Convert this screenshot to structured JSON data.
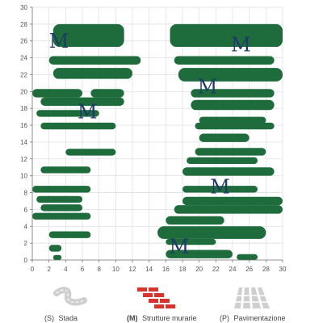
{
  "chart_data": {
    "type": "heatmap",
    "title": "",
    "xlabel": "",
    "ylabel": "",
    "xlim": [
      0,
      30
    ],
    "ylim": [
      0,
      30
    ],
    "xticks": [
      "0",
      "2",
      "4",
      "6",
      "8",
      "10",
      "12",
      "14",
      "16",
      "18",
      "20",
      "22",
      "24",
      "26",
      "28",
      "30"
    ],
    "yticks": [
      "0",
      "2",
      "4",
      "6",
      "8",
      "10",
      "12",
      "14",
      "16",
      "18",
      "20",
      "22",
      "24",
      "26",
      "28",
      "30"
    ],
    "fill_color": "#1e6b3c",
    "regions": [
      {
        "x": [
          2.5,
          11
        ],
        "y": [
          25.3,
          28
        ]
      },
      {
        "x": [
          16.5,
          30
        ],
        "y": [
          25.3,
          28
        ]
      },
      {
        "x": [
          2,
          13
        ],
        "y": [
          23.2,
          24.2
        ]
      },
      {
        "x": [
          17,
          29
        ],
        "y": [
          23.2,
          24.2
        ]
      },
      {
        "x": [
          2.5,
          12
        ],
        "y": [
          21.5,
          22.8
        ]
      },
      {
        "x": [
          17.5,
          30
        ],
        "y": [
          21.2,
          22.8
        ]
      },
      {
        "x": [
          0,
          6
        ],
        "y": [
          19.3,
          20.3
        ]
      },
      {
        "x": [
          7,
          11
        ],
        "y": [
          19.3,
          20.3
        ]
      },
      {
        "x": [
          19,
          29
        ],
        "y": [
          19.3,
          20.3
        ]
      },
      {
        "x": [
          1,
          11
        ],
        "y": [
          18.3,
          19.3
        ]
      },
      {
        "x": [
          19,
          29
        ],
        "y": [
          17.8,
          19
        ]
      },
      {
        "x": [
          0.5,
          8
        ],
        "y": [
          17,
          17.8
        ]
      },
      {
        "x": [
          20,
          28
        ],
        "y": [
          16.2,
          17
        ]
      },
      {
        "x": [
          1,
          10
        ],
        "y": [
          15.5,
          16.3
        ]
      },
      {
        "x": [
          19.5,
          29
        ],
        "y": [
          15.5,
          16.3
        ]
      },
      {
        "x": [
          20,
          26
        ],
        "y": [
          14,
          15
        ]
      },
      {
        "x": [
          4,
          10
        ],
        "y": [
          12.4,
          13.2
        ]
      },
      {
        "x": [
          19.5,
          28
        ],
        "y": [
          12.4,
          13.3
        ]
      },
      {
        "x": [
          18.5,
          27
        ],
        "y": [
          11.4,
          12.2
        ]
      },
      {
        "x": [
          1,
          7
        ],
        "y": [
          10.3,
          11.1
        ]
      },
      {
        "x": [
          18,
          29
        ],
        "y": [
          10,
          11
        ]
      },
      {
        "x": [
          0,
          7
        ],
        "y": [
          8,
          8.8
        ]
      },
      {
        "x": [
          18,
          27
        ],
        "y": [
          8,
          8.8
        ]
      },
      {
        "x": [
          0.5,
          6
        ],
        "y": [
          6.8,
          7.6
        ]
      },
      {
        "x": [
          18,
          30
        ],
        "y": [
          6.5,
          7.5
        ]
      },
      {
        "x": [
          1,
          6
        ],
        "y": [
          5.8,
          6.6
        ]
      },
      {
        "x": [
          17,
          30
        ],
        "y": [
          5.5,
          6.5
        ]
      },
      {
        "x": [
          0,
          7
        ],
        "y": [
          4.8,
          5.6
        ]
      },
      {
        "x": [
          16,
          23
        ],
        "y": [
          4.2,
          5.2
        ]
      },
      {
        "x": [
          15,
          28
        ],
        "y": [
          2.5,
          4
        ]
      },
      {
        "x": [
          2,
          7
        ],
        "y": [
          2.6,
          3.4
        ]
      },
      {
        "x": [
          16,
          22
        ],
        "y": [
          1.8,
          2.5
        ]
      },
      {
        "x": [
          2,
          3.5
        ],
        "y": [
          1,
          1.8
        ]
      },
      {
        "x": [
          16,
          24
        ],
        "y": [
          0.2,
          1.2
        ]
      },
      {
        "x": [
          24.5,
          27
        ],
        "y": [
          0,
          0.7
        ]
      },
      {
        "x": [
          2.5,
          3.5
        ],
        "y": [
          0,
          0.6
        ]
      }
    ],
    "annotations": [
      {
        "text": "M",
        "x": 3.2,
        "y": 25.2
      },
      {
        "text": "M",
        "x": 25.0,
        "y": 24.8
      },
      {
        "text": "M",
        "x": 21.0,
        "y": 19.8
      },
      {
        "text": "M",
        "x": 6.6,
        "y": 16.8
      },
      {
        "text": "M",
        "x": 22.5,
        "y": 7.9
      },
      {
        "text": "M",
        "x": 17.6,
        "y": 0.8
      }
    ]
  },
  "legend": [
    {
      "key": "(S)",
      "label": "Stada",
      "icon": "road-icon",
      "color": "#cfcfcf"
    },
    {
      "key": "(M)",
      "label": "Strutture murarie",
      "icon": "brick-wall-icon",
      "color": "#d9342b"
    },
    {
      "key": "(P)",
      "label": "Pavimentazione",
      "icon": "paving-icon",
      "color": "#cfcfcf"
    }
  ]
}
